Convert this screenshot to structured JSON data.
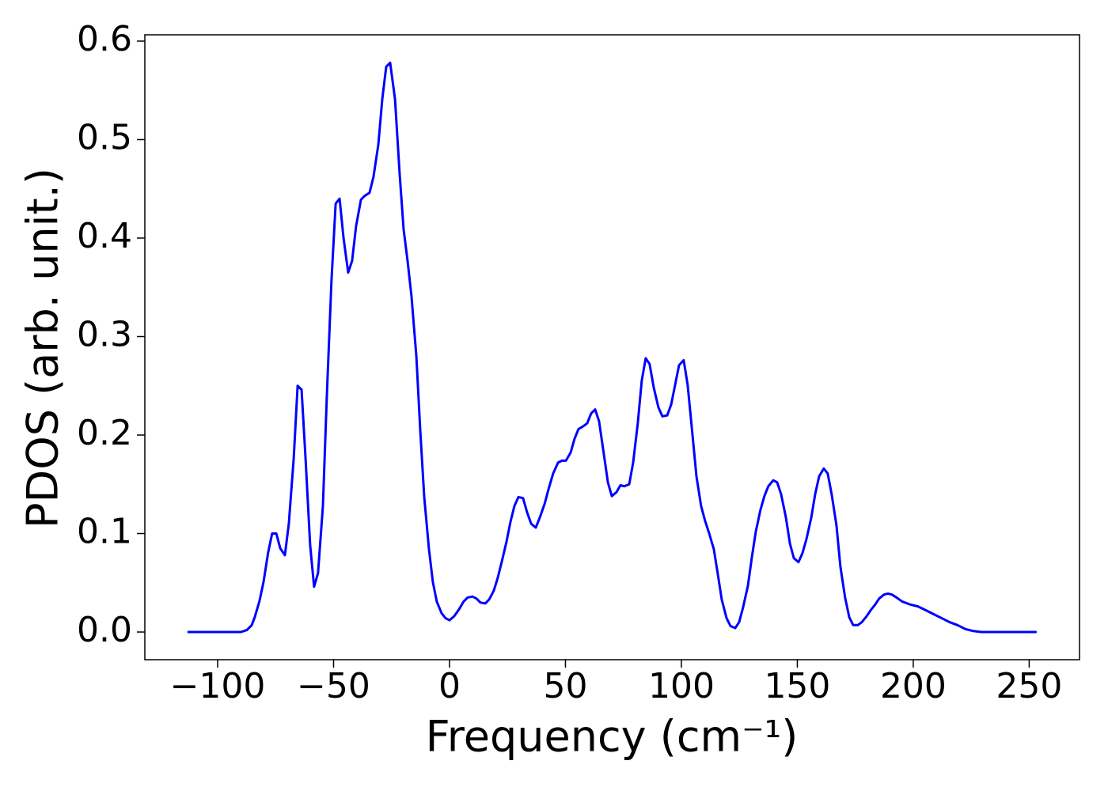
{
  "chart_data": {
    "type": "line",
    "xlabel": "Frequency (cm⁻¹)",
    "ylabel": "PDOS (arb. unit.)",
    "color": "#0000ff",
    "xlim": [
      -131.4,
      271.7
    ],
    "ylim": [
      -0.0281,
      0.6064
    ],
    "xticks": [
      {
        "value": -100,
        "label": "−100"
      },
      {
        "value": -50,
        "label": "−50"
      },
      0,
      50,
      100,
      150,
      200,
      250
    ],
    "yticks": [
      {
        "value": 0,
        "label": "0.0"
      },
      0.1,
      0.2,
      0.3,
      0.4,
      0.5,
      0.6
    ],
    "x": [
      -113,
      -90,
      -87.4,
      -85.3,
      -84,
      -82,
      -80.2,
      -78.2,
      -76.5,
      -74.7,
      -73,
      -71,
      -69.3,
      -67.2,
      -65.5,
      -63.8,
      -62.1,
      -60.1,
      -58.4,
      -56.7,
      -54.6,
      -52.9,
      -50.9,
      -49.1,
      -47.4,
      -45.7,
      -43.7,
      -42,
      -40.3,
      -38.2,
      -36.5,
      -34.5,
      -32.8,
      -30.7,
      -29,
      -27.3,
      -25.6,
      -23.5,
      -21.5,
      -19.8,
      -18.1,
      -16.4,
      -14.3,
      -12.6,
      -10.9,
      -8.9,
      -7.2,
      -5.5,
      -3.4,
      -1.7,
      0,
      2,
      4.1,
      6.1,
      7.8,
      9.9,
      11.6,
      13.3,
      15.4,
      17.1,
      19.1,
      20.8,
      22.5,
      24.6,
      26.3,
      28,
      29.7,
      31.7,
      33.4,
      35.2,
      37.2,
      38.9,
      41,
      42.7,
      44.7,
      46.8,
      48.5,
      50.2,
      52.2,
      53.9,
      55.6,
      57.7,
      59.4,
      61.1,
      62.8,
      64.5,
      66.6,
      68.3,
      70,
      72,
      73.7,
      75.4,
      77.5,
      79.2,
      81.2,
      82.9,
      84.6,
      86.3,
      88.1,
      90.1,
      91.8,
      93.9,
      95.6,
      97.3,
      99,
      101,
      102.7,
      104.8,
      106.5,
      108.5,
      110.2,
      112,
      114,
      115.7,
      117.4,
      119.5,
      121.2,
      123.2,
      124.9,
      126.6,
      128.7,
      130.4,
      132.1,
      134.1,
      135.8,
      137.5,
      139.6,
      141.3,
      143,
      145.1,
      146.8,
      148.5,
      150.5,
      152.2,
      153.9,
      156,
      157.7,
      159.4,
      161.4,
      163.1,
      164.8,
      166.9,
      168.6,
      170.6,
      172.4,
      174.1,
      176.1,
      177.8,
      179.9,
      181.6,
      183.6,
      185.3,
      187.4,
      189.1,
      190.8,
      192.8,
      195.2,
      198.6,
      202,
      205.5,
      208.9,
      212.3,
      215.7,
      219.1,
      222.5,
      225.9,
      229.4,
      253.2
    ],
    "values": [
      0,
      0,
      0.002,
      0.007,
      0.015,
      0.031,
      0.051,
      0.081,
      0.1,
      0.1,
      0.085,
      0.078,
      0.11,
      0.176,
      0.25,
      0.246,
      0.177,
      0.088,
      0.046,
      0.06,
      0.128,
      0.24,
      0.357,
      0.435,
      0.44,
      0.4,
      0.365,
      0.377,
      0.412,
      0.439,
      0.443,
      0.446,
      0.462,
      0.495,
      0.541,
      0.574,
      0.578,
      0.541,
      0.465,
      0.409,
      0.377,
      0.341,
      0.28,
      0.204,
      0.137,
      0.085,
      0.051,
      0.031,
      0.019,
      0.014,
      0.012,
      0.016,
      0.023,
      0.031,
      0.035,
      0.036,
      0.034,
      0.03,
      0.029,
      0.033,
      0.042,
      0.055,
      0.071,
      0.092,
      0.112,
      0.128,
      0.137,
      0.136,
      0.122,
      0.11,
      0.106,
      0.116,
      0.13,
      0.145,
      0.161,
      0.172,
      0.174,
      0.174,
      0.182,
      0.196,
      0.206,
      0.209,
      0.212,
      0.222,
      0.226,
      0.214,
      0.18,
      0.152,
      0.138,
      0.142,
      0.149,
      0.148,
      0.15,
      0.172,
      0.212,
      0.255,
      0.278,
      0.272,
      0.248,
      0.228,
      0.219,
      0.22,
      0.231,
      0.251,
      0.271,
      0.276,
      0.251,
      0.2,
      0.158,
      0.128,
      0.113,
      0.1,
      0.084,
      0.059,
      0.033,
      0.014,
      0.006,
      0.004,
      0.01,
      0.025,
      0.047,
      0.076,
      0.102,
      0.124,
      0.138,
      0.148,
      0.154,
      0.152,
      0.14,
      0.116,
      0.09,
      0.075,
      0.071,
      0.08,
      0.094,
      0.116,
      0.14,
      0.158,
      0.166,
      0.161,
      0.14,
      0.108,
      0.066,
      0.035,
      0.015,
      0.007,
      0.007,
      0.01,
      0.016,
      0.022,
      0.028,
      0.034,
      0.038,
      0.039,
      0.038,
      0.035,
      0.031,
      0.028,
      0.026,
      0.022,
      0.018,
      0.014,
      0.01,
      0.007,
      0.003,
      0.001,
      0,
      0
    ]
  }
}
